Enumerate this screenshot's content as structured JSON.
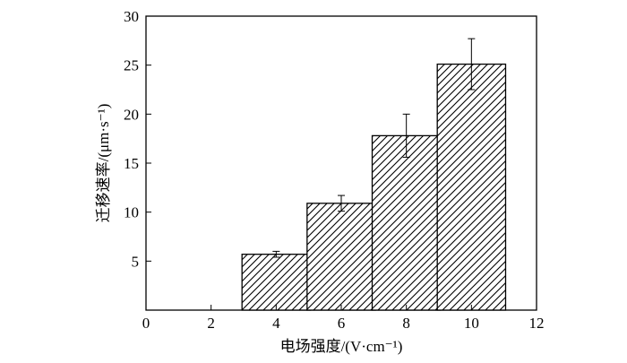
{
  "chart_data": {
    "type": "bar",
    "x": [
      4,
      6,
      8,
      10
    ],
    "values": [
      5.7,
      10.9,
      17.8,
      25.1
    ],
    "errors": [
      0.3,
      0.8,
      2.2,
      2.6
    ],
    "xlabel": "电场强度/(V·cm⁻¹)",
    "ylabel": "迁移速率/(μm·s⁻¹)",
    "xlim": [
      0,
      12
    ],
    "ylim": [
      0,
      30
    ],
    "xticks": [
      0,
      2,
      4,
      6,
      8,
      10,
      12
    ],
    "yticks": [
      5,
      10,
      15,
      20,
      25,
      30
    ],
    "xtick_labels": [
      "0",
      "2",
      "4",
      "6",
      "8",
      "10",
      "12"
    ],
    "ytick_labels": [
      "5",
      "10",
      "15",
      "20",
      "25",
      "30"
    ],
    "bar_width_units": 2.1,
    "bar_fill": "diagonal-hatch",
    "grid": false
  }
}
